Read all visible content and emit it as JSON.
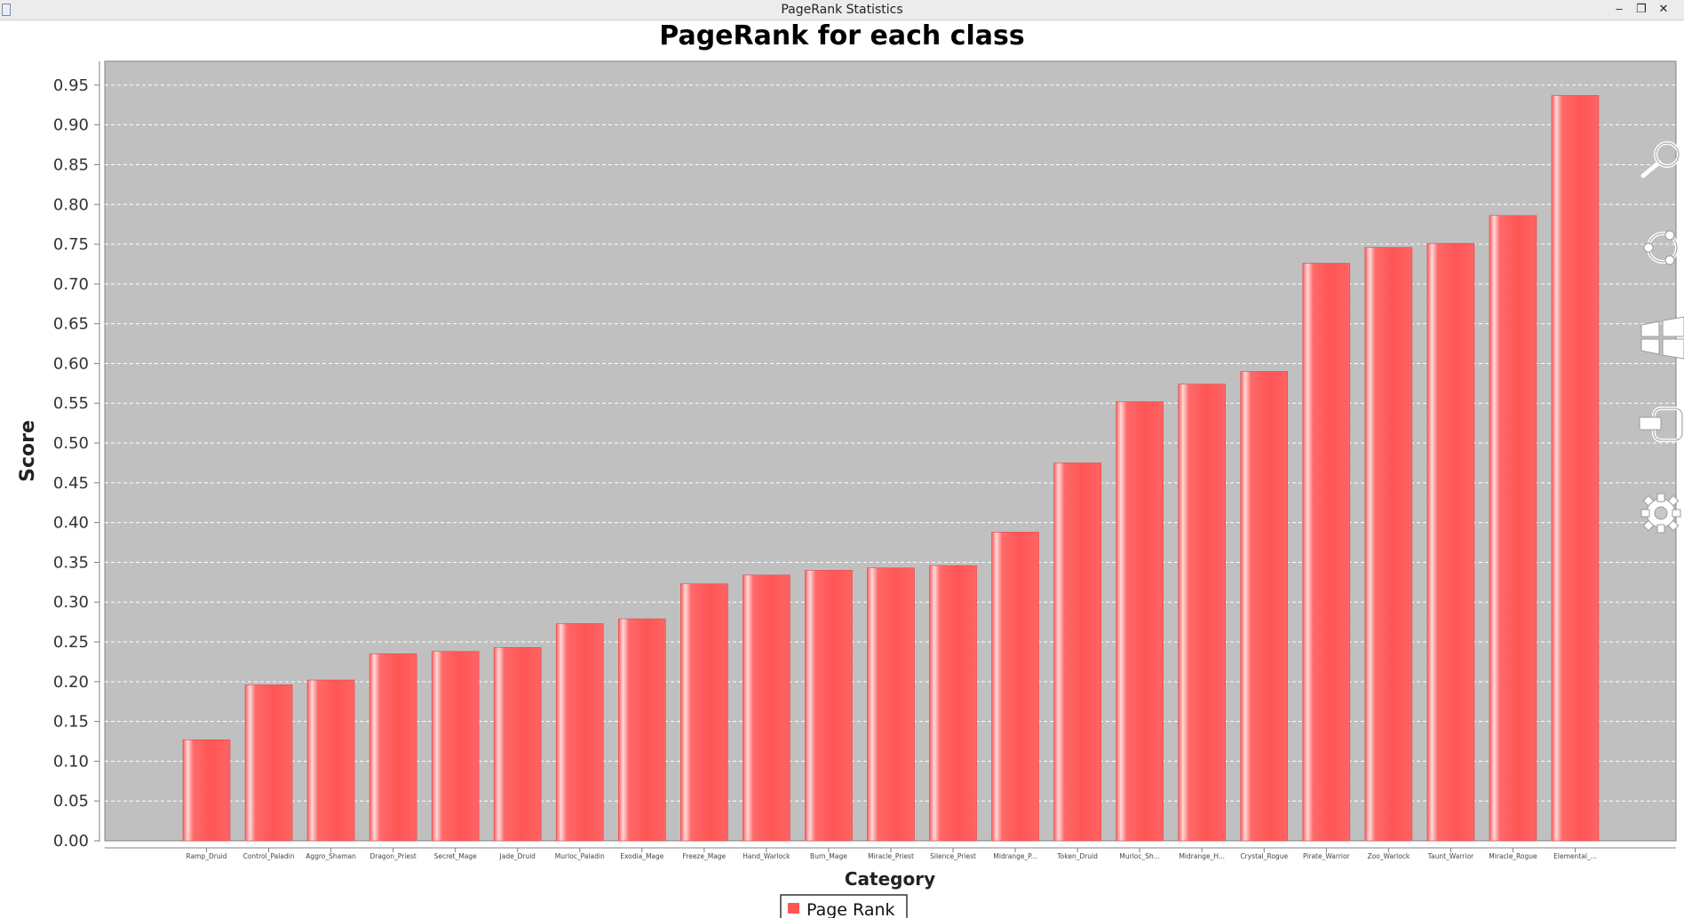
{
  "window": {
    "title": "PageRank Statistics",
    "minimize_glyph": "–",
    "restore_glyph": "❐",
    "close_glyph": "✕"
  },
  "sidebar_icons": [
    "search-icon",
    "share-icon",
    "windows-icon",
    "device-connect-icon",
    "gear-icon"
  ],
  "colors": {
    "plot_background": "#c0c0c0",
    "bar": "#ff5555",
    "bar_highlight": "#ffd6d6",
    "gridline": "#ffffff"
  },
  "chart_data": {
    "type": "bar",
    "title": "PageRank for each class",
    "xlabel": "Category",
    "ylabel": "Score",
    "ylim": [
      0,
      0.98
    ],
    "yticks": [
      "0.00",
      "0.05",
      "0.10",
      "0.15",
      "0.20",
      "0.25",
      "0.30",
      "0.35",
      "0.40",
      "0.45",
      "0.50",
      "0.55",
      "0.60",
      "0.65",
      "0.70",
      "0.75",
      "0.80",
      "0.85",
      "0.90",
      "0.95"
    ],
    "grid": true,
    "legend_position": "bottom-center",
    "categories": [
      "Ramp_Druid",
      "Control_Paladin",
      "Aggro_Shaman",
      "Dragon_Priest",
      "Secret_Mage",
      "Jade_Druid",
      "Murloc_Paladin",
      "Exodia_Mage",
      "Freeze_Mage",
      "Hand_Warlock",
      "Burn_Mage",
      "Miracle_Priest",
      "Silence_Priest",
      "Midrange_P...",
      "Token_Druid",
      "Murloc_Sh...",
      "Midrange_H...",
      "Crystal_Rogue",
      "Pirate_Warrior",
      "Zoo_Warlock",
      "Taunt_Warrior",
      "Miracle_Rogue",
      "Elemental_..."
    ],
    "series": [
      {
        "name": "Page Rank",
        "values": [
          0.127,
          0.196,
          0.202,
          0.235,
          0.238,
          0.243,
          0.273,
          0.279,
          0.323,
          0.334,
          0.34,
          0.343,
          0.346,
          0.388,
          0.475,
          0.552,
          0.574,
          0.59,
          0.726,
          0.746,
          0.751,
          0.786,
          0.937
        ]
      }
    ]
  }
}
